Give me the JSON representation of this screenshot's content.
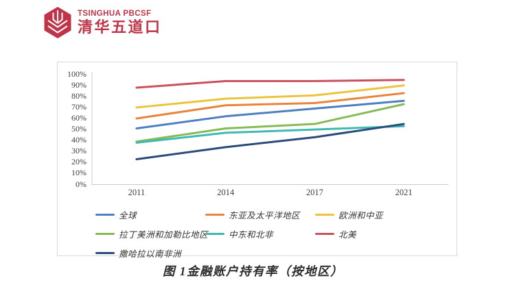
{
  "logo": {
    "en": "TSINGHUA PBCSF",
    "zh": "清华五道口",
    "color": "#bf3448"
  },
  "caption": "图 1金融账户持有率（按地区）",
  "chart_data": {
    "type": "line",
    "title": "",
    "xlabel": "",
    "ylabel": "",
    "categories": [
      "2011",
      "2014",
      "2017",
      "2021"
    ],
    "y_ticks": [
      "100%",
      "90%",
      "80%",
      "70%",
      "60%",
      "50%",
      "40%",
      "30%",
      "20%",
      "10%",
      "0%"
    ],
    "ylim": [
      0,
      100
    ],
    "grid": false,
    "legend_position": "bottom",
    "axis_color": "#c9c9c9",
    "series": [
      {
        "name": "全球",
        "color": "#4d7ebf",
        "values": [
          51,
          62,
          69,
          76
        ]
      },
      {
        "name": "东亚及太平洋地区",
        "color": "#e8843c",
        "values": [
          60,
          72,
          74,
          83
        ]
      },
      {
        "name": "欧洲和中亚",
        "color": "#ecc33c",
        "values": [
          70,
          78,
          81,
          90
        ]
      },
      {
        "name": "拉丁美洲和加勒比地区",
        "color": "#84bb57",
        "values": [
          39,
          51,
          55,
          73
        ]
      },
      {
        "name": "中东和北非",
        "color": "#3fb9b1",
        "values": [
          38,
          47,
          50,
          53
        ]
      },
      {
        "name": "北美",
        "color": "#c9505f",
        "values": [
          88,
          94,
          94,
          95
        ]
      },
      {
        "name": "撒哈拉以南非洲",
        "color": "#2a4a7c",
        "values": [
          23,
          34,
          43,
          55
        ]
      }
    ]
  }
}
